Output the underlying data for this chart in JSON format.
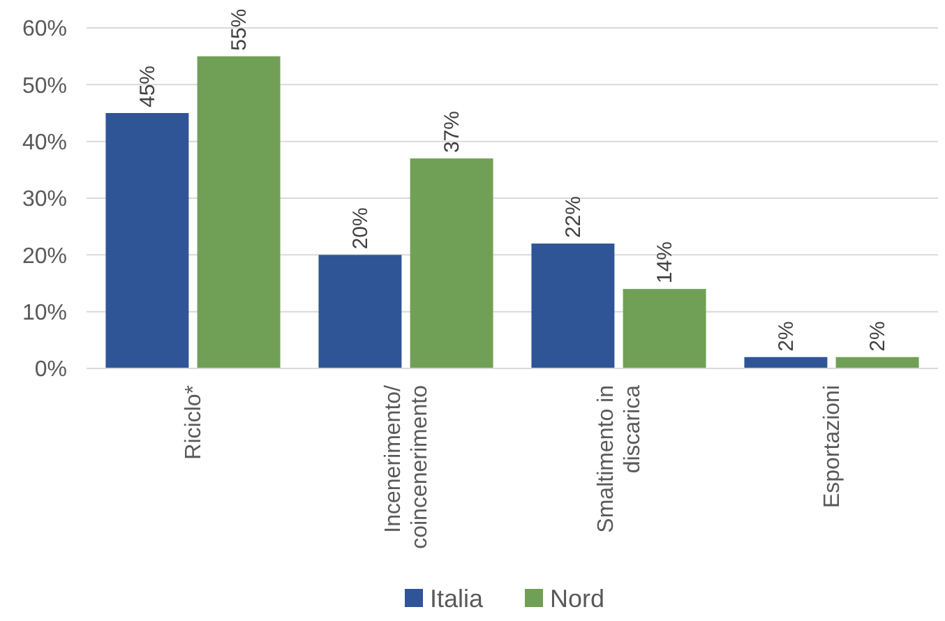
{
  "chart_data": {
    "type": "bar",
    "categories": [
      "Riciclo*",
      "Incenerimento/ coincenerimento",
      "Smaltimento in discarica",
      "Esportazioni"
    ],
    "series": [
      {
        "name": "Italia",
        "color": "#2f5597",
        "values": [
          45,
          20,
          22,
          2
        ],
        "value_labels": [
          "45%",
          "20%",
          "22%",
          "2%"
        ]
      },
      {
        "name": "Nord",
        "color": "#70a055",
        "values": [
          55,
          37,
          14,
          2
        ],
        "value_labels": [
          "55%",
          "37%",
          "14%",
          "2%"
        ]
      }
    ],
    "ylim": [
      0,
      60
    ],
    "yticks": [
      {
        "value": 0,
        "label": "0%"
      },
      {
        "value": 10,
        "label": "10%"
      },
      {
        "value": 20,
        "label": "20%"
      },
      {
        "value": 30,
        "label": "30%"
      },
      {
        "value": 40,
        "label": "40%"
      },
      {
        "value": 50,
        "label": "50%"
      },
      {
        "value": 60,
        "label": "60%"
      }
    ],
    "grid": "y",
    "legend": "bottom"
  }
}
